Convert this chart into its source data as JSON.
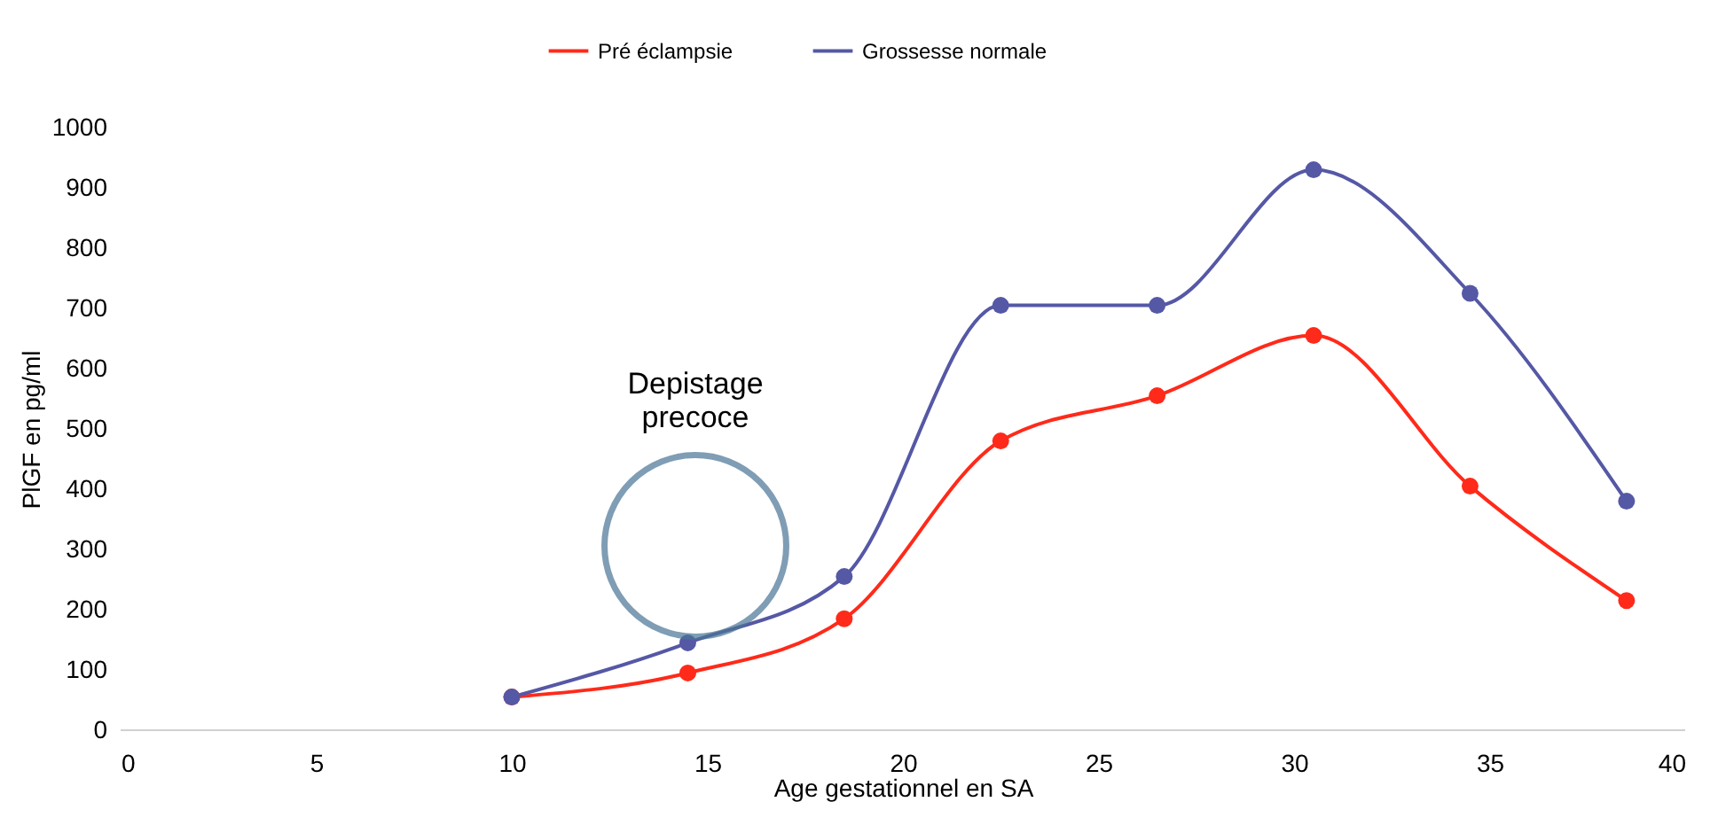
{
  "chart_data": {
    "type": "line",
    "xlabel": "Age gestationnel en SA",
    "ylabel": "PlGF en pg/ml",
    "x": [
      10,
      14.5,
      18.5,
      22.5,
      26.5,
      30.5,
      34.5,
      38.5
    ],
    "series": [
      {
        "name": "Pré éclampsie",
        "color": "#ff2a1a",
        "values": [
          55,
          95,
          185,
          480,
          555,
          655,
          405,
          215
        ]
      },
      {
        "name": "Grossesse normale",
        "color": "#5558a5",
        "values": [
          55,
          145,
          255,
          705,
          705,
          930,
          725,
          380
        ]
      }
    ],
    "xlim": [
      0,
      40
    ],
    "xticks": [
      0,
      5,
      10,
      15,
      20,
      25,
      30,
      35,
      40
    ],
    "ylim": [
      0,
      1000
    ],
    "yticks": [
      0,
      100,
      200,
      300,
      400,
      500,
      600,
      700,
      800,
      900,
      1000
    ],
    "annotations": [
      "Depistage\nprecoce"
    ],
    "marker": "circle",
    "line_style": "solid",
    "legend": "top",
    "grid": false
  }
}
